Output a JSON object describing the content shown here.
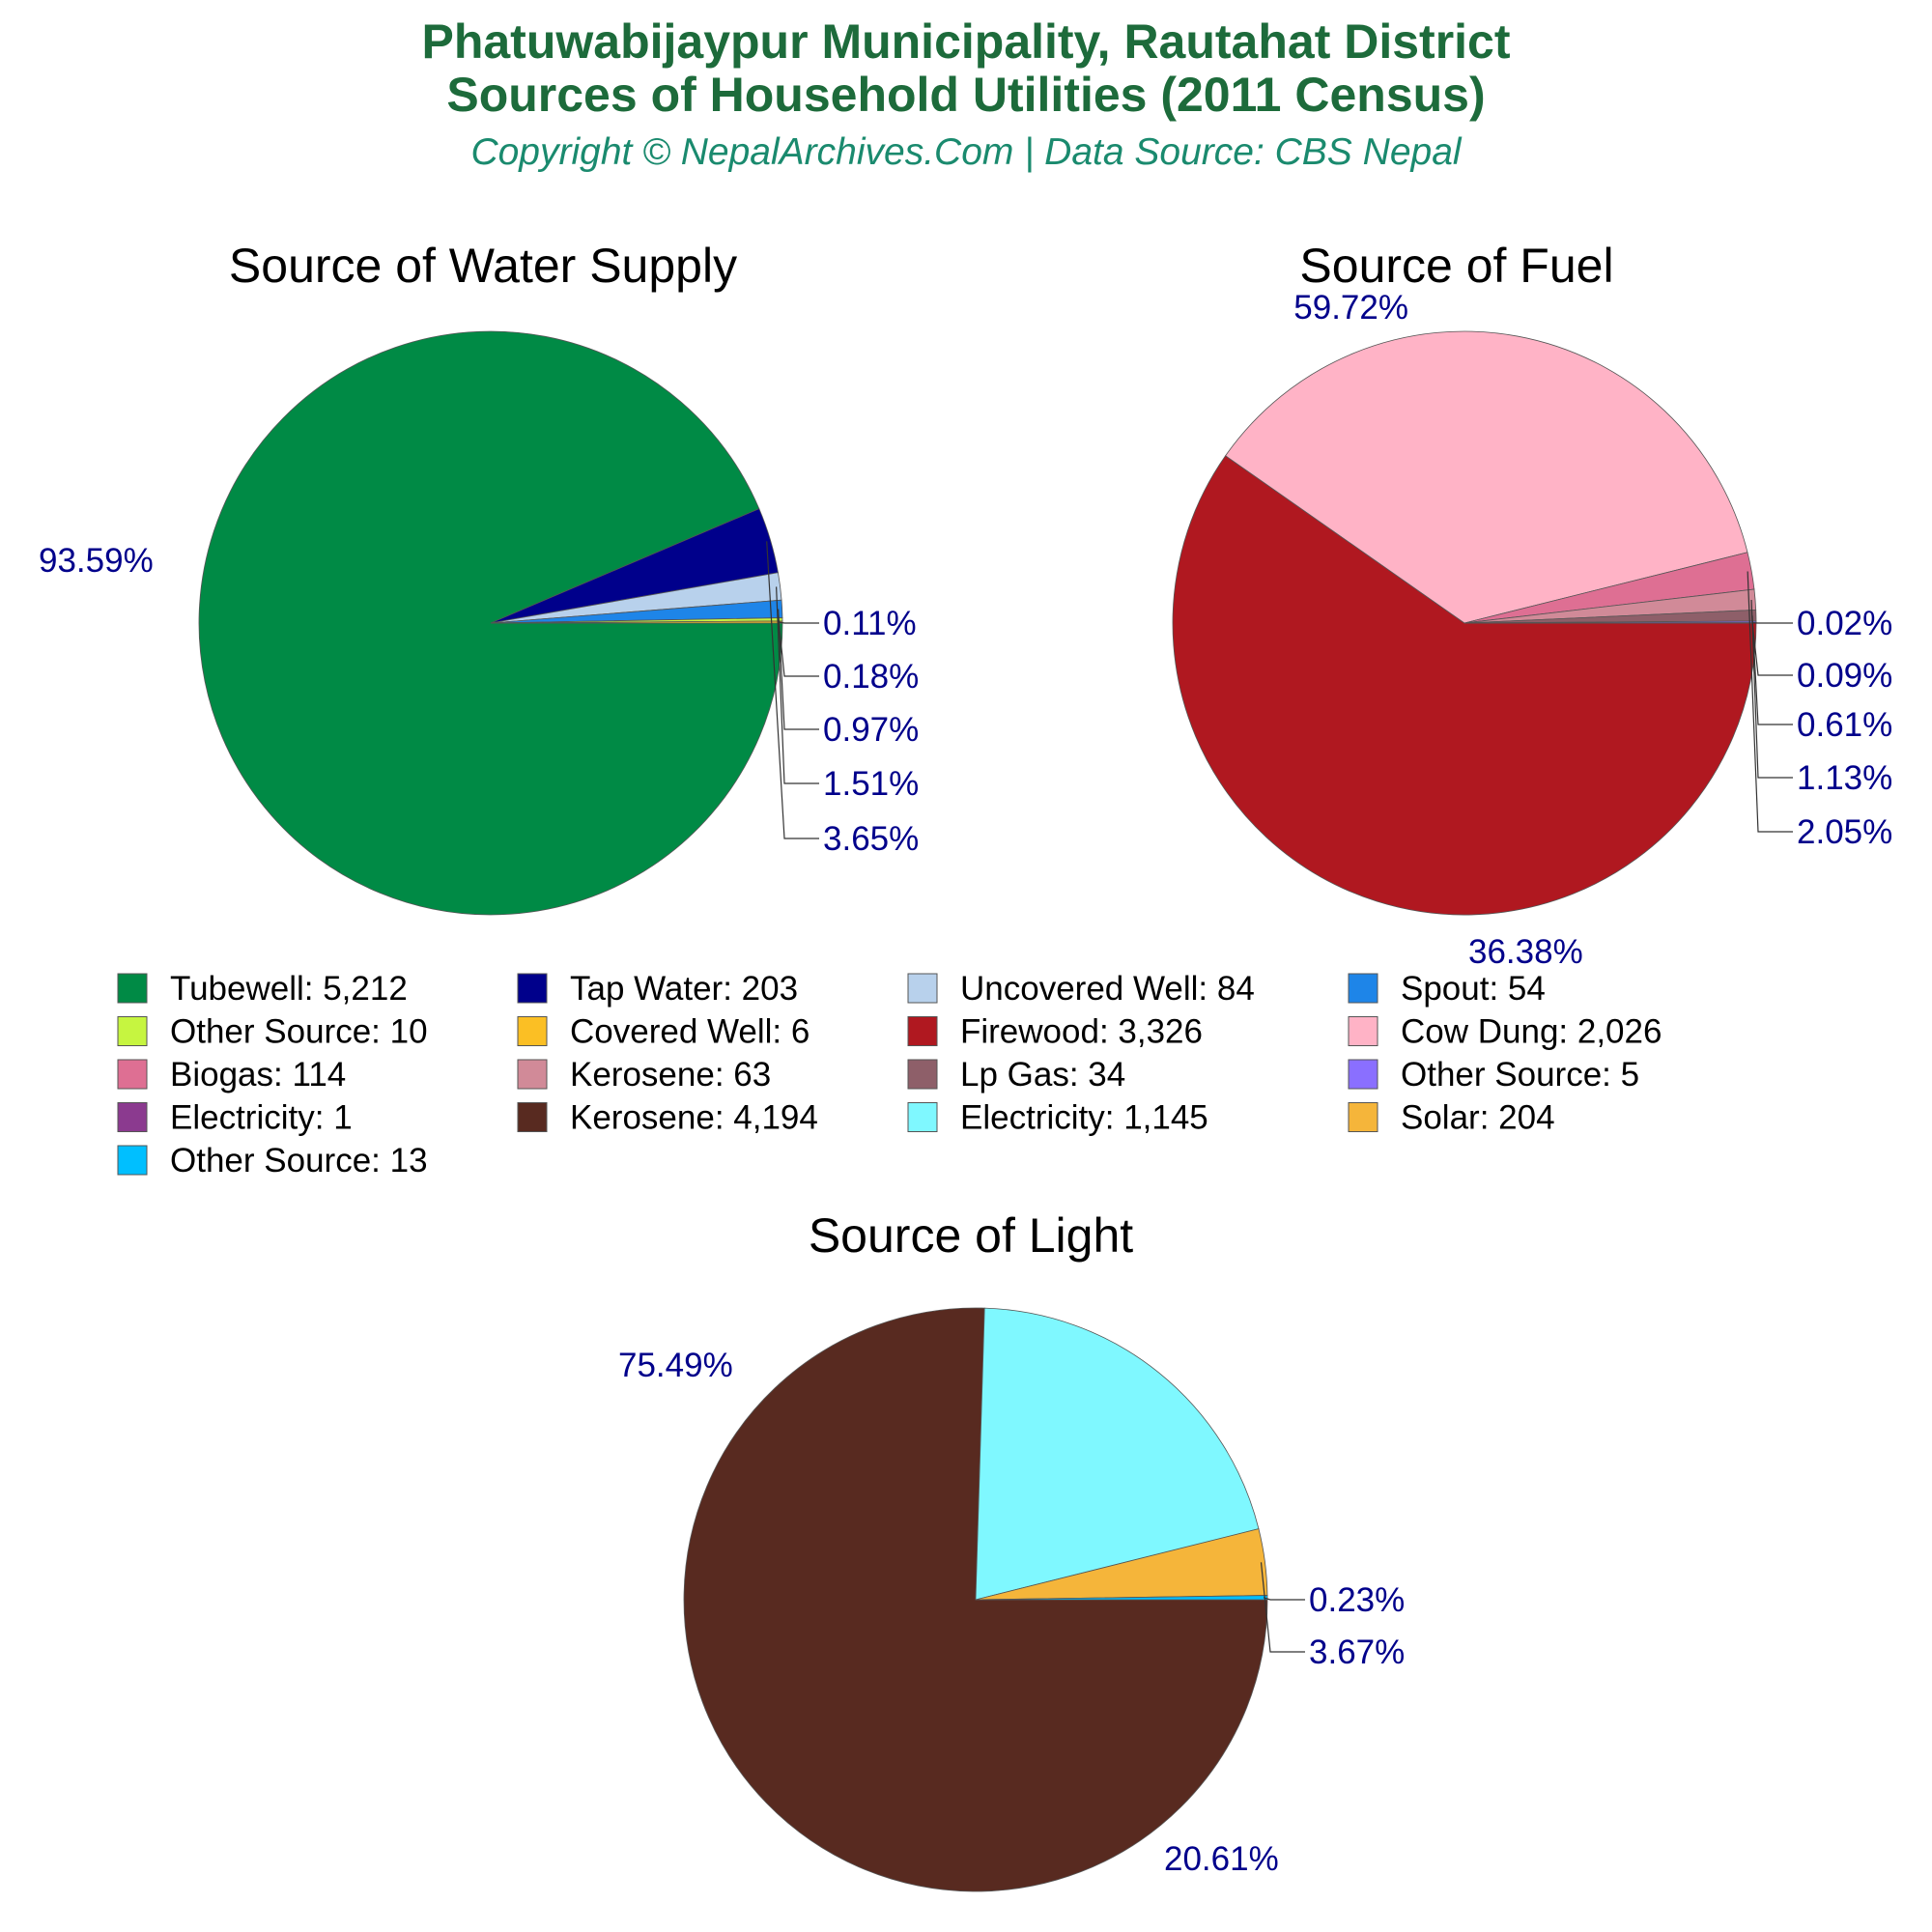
{
  "header": {
    "title_line1": "Phatuwabijaypur Municipality, Rautahat District",
    "title_line2": "Sources of Household Utilities (2011 Census)",
    "subtitle": "Copyright © NepalArchives.Com | Data Source: CBS Nepal"
  },
  "chart_data": [
    {
      "type": "pie",
      "title": "Source of Water Supply",
      "slices": [
        {
          "label": "Tubewell",
          "value": 5212,
          "pct": "93.59%",
          "color": "#008a45"
        },
        {
          "label": "Tap Water",
          "value": 203,
          "pct": "3.65%",
          "color": "#00008b"
        },
        {
          "label": "Uncovered Well",
          "value": 84,
          "pct": "1.51%",
          "color": "#b8d1ec"
        },
        {
          "label": "Spout",
          "value": 54,
          "pct": "0.97%",
          "color": "#1e85e8"
        },
        {
          "label": "Other Source",
          "value": 10,
          "pct": "0.18%",
          "color": "#c6f540"
        },
        {
          "label": "Covered Well",
          "value": 6,
          "pct": "0.11%",
          "color": "#fbbf24"
        }
      ]
    },
    {
      "type": "pie",
      "title": "Source of Fuel",
      "slices": [
        {
          "label": "Firewood",
          "value": 3326,
          "pct": "59.72%",
          "color": "#b01820"
        },
        {
          "label": "Cow Dung",
          "value": 2026,
          "pct": "36.38%",
          "color": "#ffb3c6"
        },
        {
          "label": "Biogas",
          "value": 114,
          "pct": "2.05%",
          "color": "#de6f93"
        },
        {
          "label": "Kerosene",
          "value": 63,
          "pct": "1.13%",
          "color": "#d18a98"
        },
        {
          "label": "Lp Gas",
          "value": 34,
          "pct": "0.61%",
          "color": "#8e5f69"
        },
        {
          "label": "Other Source",
          "value": 5,
          "pct": "0.09%",
          "color": "#8a6fff"
        },
        {
          "label": "Electricity",
          "value": 1,
          "pct": "0.02%",
          "color": "#8b3a8f"
        }
      ]
    },
    {
      "type": "pie",
      "title": "Source of Light",
      "slices": [
        {
          "label": "Kerosene",
          "value": 4194,
          "pct": "75.49%",
          "color": "#582a20"
        },
        {
          "label": "Electricity",
          "value": 1145,
          "pct": "20.61%",
          "color": "#7ff8ff"
        },
        {
          "label": "Solar",
          "value": 204,
          "pct": "3.67%",
          "color": "#f5b53a"
        },
        {
          "label": "Other Source",
          "value": 13,
          "pct": "0.23%",
          "color": "#00bfff"
        }
      ]
    }
  ],
  "legend": [
    {
      "text": "Tubewell: 5,212",
      "color": "#008a45"
    },
    {
      "text": "Tap Water: 203",
      "color": "#00008b"
    },
    {
      "text": "Uncovered Well: 84",
      "color": "#b8d1ec"
    },
    {
      "text": "Spout: 54",
      "color": "#1e85e8"
    },
    {
      "text": "Other Source: 10",
      "color": "#c6f540"
    },
    {
      "text": "Covered Well: 6",
      "color": "#fbbf24"
    },
    {
      "text": "Firewood: 3,326",
      "color": "#b01820"
    },
    {
      "text": "Cow Dung: 2,026",
      "color": "#ffb3c6"
    },
    {
      "text": "Biogas: 114",
      "color": "#de6f93"
    },
    {
      "text": "Kerosene: 63",
      "color": "#d18a98"
    },
    {
      "text": "Lp Gas: 34",
      "color": "#8e5f69"
    },
    {
      "text": "Other Source: 5",
      "color": "#8a6fff"
    },
    {
      "text": "Electricity: 1",
      "color": "#8b3a8f"
    },
    {
      "text": "Kerosene: 4,194",
      "color": "#582a20"
    },
    {
      "text": "Electricity: 1,145",
      "color": "#7ff8ff"
    },
    {
      "text": "Solar: 204",
      "color": "#f5b53a"
    },
    {
      "text": "Other Source: 13",
      "color": "#00bfff"
    }
  ]
}
